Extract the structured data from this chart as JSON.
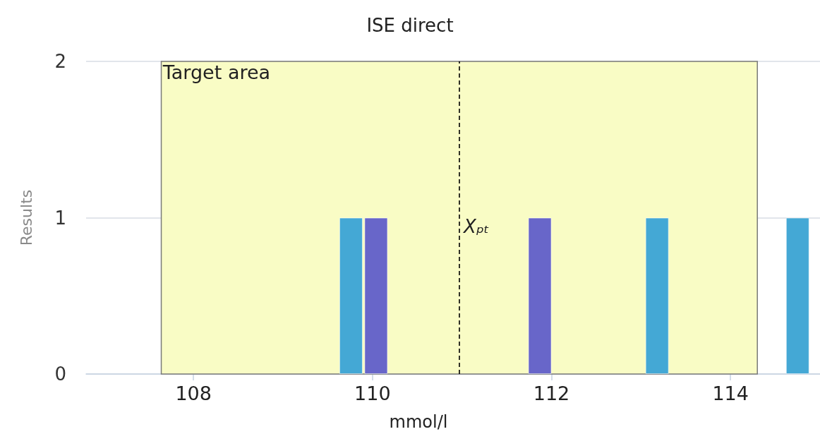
{
  "chart_data": {
    "type": "bar",
    "title": "ISE direct",
    "xlabel": "mmol/l",
    "ylabel": "Results",
    "series": [
      {
        "color": "#44a8d5",
        "x": [
          109.76,
          113.18,
          114.75
        ],
        "values": [
          1,
          1,
          1
        ]
      },
      {
        "color": "#6866c9",
        "x": [
          110.04,
          111.87
        ],
        "values": [
          1,
          1
        ]
      }
    ],
    "xlim": [
      106.8,
      115
    ],
    "xticks": [
      108,
      110,
      112,
      114
    ],
    "ylim": [
      0,
      2
    ],
    "yticks": [
      0,
      1,
      2
    ],
    "grid": "y",
    "bands": [
      {
        "axis": "x",
        "from": 107.64,
        "to": 114.3,
        "label": "Target area",
        "color": "#f9fcc5"
      }
    ],
    "ref_lines": [
      {
        "axis": "x",
        "value": 110.97,
        "label": "Xₚₜ",
        "color": "#000000",
        "line_style": "dashed"
      }
    ]
  }
}
